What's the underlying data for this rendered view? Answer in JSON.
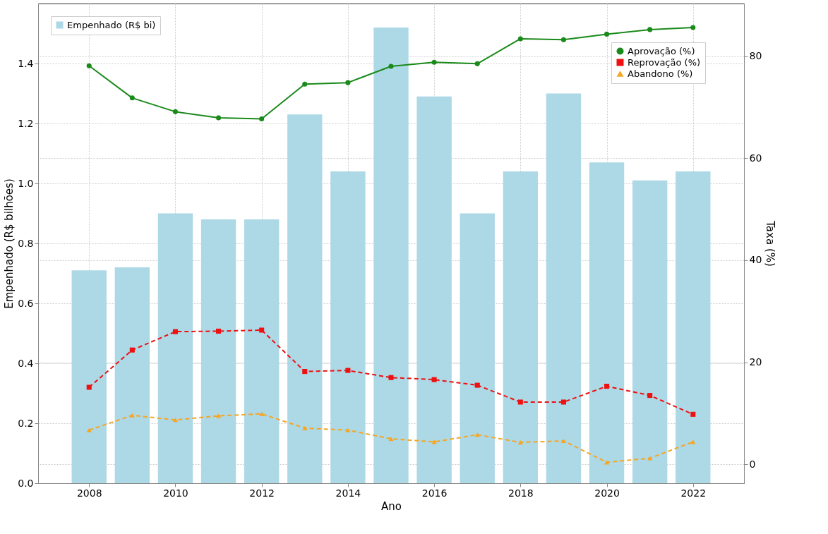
{
  "chart_data": {
    "type": "bar",
    "xlabel": "Ano",
    "ylabel": "Empenhado (R$ bilhões)",
    "y2label": "Taxa (%)",
    "x": [
      2008,
      2009,
      2010,
      2011,
      2012,
      2013,
      2014,
      2015,
      2016,
      2017,
      2018,
      2019,
      2020,
      2021,
      2022
    ],
    "xlim": [
      2006.9,
      2023.1
    ],
    "xticks": [
      2008,
      2010,
      2012,
      2014,
      2016,
      2018,
      2020,
      2022
    ],
    "ylim": [
      0,
      1.6
    ],
    "yticks": [
      {
        "value": 0,
        "label": "0.0"
      },
      0.2,
      0.4,
      0.6,
      0.8,
      {
        "value": 1,
        "label": "1.0"
      },
      1.2,
      1.4
    ],
    "y2lim": [
      -3.7,
      90.3
    ],
    "y2ticks": [
      0,
      20,
      40,
      60,
      80
    ],
    "grid": true,
    "legend": "top",
    "series": [
      {
        "name": "Empenhado (R$ bi)",
        "color": "#add8e6",
        "values": [
          0.71,
          0.72,
          0.9,
          0.88,
          0.88,
          1.23,
          1.04,
          1.52,
          1.29,
          0.9,
          1.04,
          1.3,
          1.07,
          1.01,
          1.04
        ]
      },
      {
        "name": "Aprovação (%)",
        "type": "line",
        "axis": "y2",
        "color": "#1a8a1a",
        "marker": "circle",
        "line_style": "solid",
        "values": [
          78.1,
          71.8,
          69.1,
          67.9,
          67.7,
          74.5,
          74.8,
          78.0,
          78.8,
          78.5,
          83.4,
          83.2,
          84.3,
          85.2,
          85.6
        ]
      },
      {
        "name": "Reprovação (%)",
        "type": "line",
        "axis": "y2",
        "color": "#ee1111",
        "marker": "square",
        "line_style": "dashed",
        "values": [
          15.1,
          22.4,
          26.0,
          26.1,
          26.3,
          18.2,
          18.4,
          17.0,
          16.6,
          15.5,
          12.2,
          12.2,
          15.3,
          13.5,
          9.8
        ]
      },
      {
        "name": "Abandono (%)",
        "type": "line",
        "axis": "y2",
        "color": "#f5a623",
        "marker": "triangle",
        "line_style": "dashed",
        "values": [
          6.7,
          9.6,
          8.7,
          9.5,
          9.9,
          7.1,
          6.7,
          5.0,
          4.4,
          5.8,
          4.3,
          4.6,
          0.4,
          1.2,
          4.4
        ]
      }
    ]
  }
}
